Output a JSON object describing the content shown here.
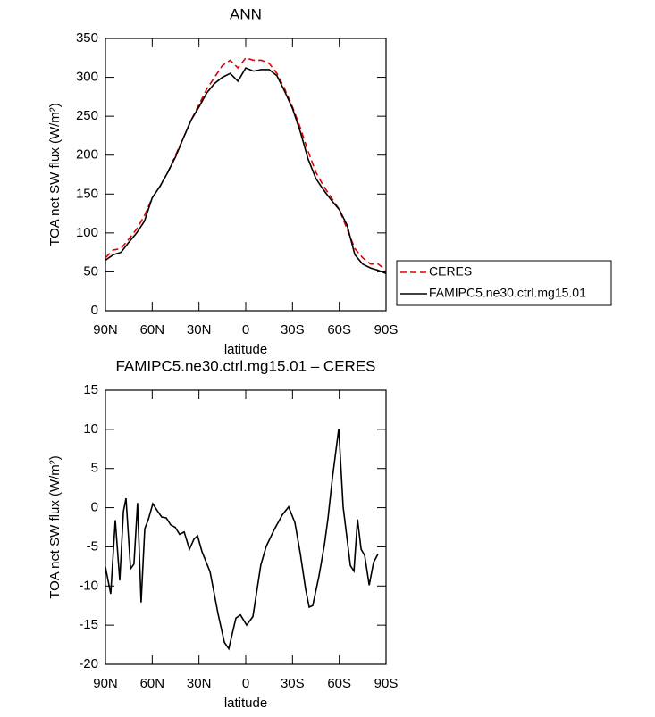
{
  "chart_data": [
    {
      "type": "line",
      "title": "ANN",
      "xlabel": "latitude",
      "ylabel": "TOA net SW flux (W/m²)",
      "x": [
        90,
        85,
        80,
        75,
        70,
        65,
        60,
        55,
        50,
        45,
        40,
        35,
        30,
        25,
        20,
        15,
        10,
        5,
        0,
        -5,
        -10,
        -15,
        -20,
        -25,
        -30,
        -35,
        -40,
        -45,
        -50,
        -55,
        -60,
        -65,
        -70,
        -75,
        -80,
        -85,
        -90
      ],
      "series": [
        {
          "name": "CERES",
          "color": "#e00000",
          "style": "dashed",
          "values": [
            68,
            78,
            80,
            92,
            105,
            122,
            145,
            160,
            178,
            200,
            222,
            245,
            265,
            285,
            300,
            315,
            322,
            312,
            325,
            322,
            322,
            318,
            305,
            285,
            262,
            235,
            205,
            178,
            160,
            145,
            130,
            105,
            80,
            68,
            60,
            60,
            52
          ]
        },
        {
          "name": "FAMIPC5.ne30.ctrl.mg15.01",
          "color": "#000000",
          "style": "solid",
          "values": [
            65,
            72,
            75,
            88,
            100,
            115,
            145,
            160,
            178,
            198,
            222,
            245,
            262,
            280,
            292,
            300,
            305,
            295,
            312,
            308,
            310,
            310,
            302,
            282,
            260,
            230,
            195,
            170,
            155,
            142,
            130,
            110,
            72,
            60,
            55,
            52,
            48
          ]
        }
      ],
      "xlim": [
        90,
        -90
      ],
      "xticks": [
        {
          "value": 90,
          "label": "90N"
        },
        {
          "value": 60,
          "label": "60N"
        },
        {
          "value": 30,
          "label": "30N"
        },
        0,
        {
          "value": -30,
          "label": "30S"
        },
        {
          "value": -60,
          "label": "60S"
        },
        {
          "value": -90,
          "label": "90S"
        }
      ],
      "ylim": [
        0,
        350
      ],
      "yticks": [
        0,
        50,
        100,
        150,
        200,
        250,
        300,
        350
      ],
      "legend": "outside-right"
    },
    {
      "type": "line",
      "title": "FAMIPC5.ne30.ctrl.mg15.01 – CERES",
      "xlabel": "latitude",
      "ylabel": "TOA net SW flux (W/m²)",
      "x": [
        90,
        86.6,
        83.7,
        80.8,
        78.5,
        76.8,
        73.9,
        71.7,
        69.4,
        67.1,
        64.8,
        62.5,
        59.6,
        56.7,
        53.9,
        51.0,
        48.1,
        45.3,
        42.4,
        39.5,
        36.1,
        33.2,
        30.9,
        28.1,
        22.9,
        17.7,
        13.7,
        10.9,
        6.3,
        3.4,
        -0.6,
        -4.6,
        -9.7,
        -13.2,
        -18.3,
        -23.5,
        -27.5,
        -31.5,
        -35.0,
        -38.4,
        -40.7,
        -43.0,
        -47.0,
        -50.5,
        -52.8,
        -55.6,
        -59.7,
        -62.5,
        -67.1,
        -69.4,
        -71.7,
        -74.0,
        -76.3,
        -79.2,
        -82.0,
        -84.9
      ],
      "series": [
        {
          "color": "#000000",
          "style": "solid",
          "values": [
            -7.6,
            -11,
            -1.6,
            -9.3,
            -0.5,
            1.2,
            -7.8,
            -7.2,
            0.6,
            -12.1,
            -2.7,
            -1.5,
            0.5,
            -0.4,
            -1.2,
            -1.3,
            -2.2,
            -2.5,
            -3.4,
            -3.1,
            -5.3,
            -4.0,
            -3.6,
            -5.6,
            -8.2,
            -13.6,
            -17.2,
            -18.0,
            -14.1,
            -13.7,
            -15.0,
            -13.9,
            -7.3,
            -4.9,
            -2.8,
            -0.9,
            0.1,
            -1.9,
            -5.9,
            -10.4,
            -12.7,
            -12.5,
            -8.7,
            -4.7,
            -1.3,
            3.8,
            10.1,
            0.1,
            -7.4,
            -8.1,
            -1.5,
            -5.3,
            -6.1,
            -9.9,
            -7.0,
            -5.9
          ]
        }
      ],
      "xlim": [
        90,
        -90
      ],
      "xticks": [
        {
          "value": 90,
          "label": "90N"
        },
        {
          "value": 60,
          "label": "60N"
        },
        {
          "value": 30,
          "label": "30N"
        },
        0,
        {
          "value": -30,
          "label": "30S"
        },
        {
          "value": -60,
          "label": "60S"
        },
        {
          "value": -90,
          "label": "90S"
        }
      ],
      "ylim": [
        -20,
        15
      ],
      "yticks": [
        -20,
        -15,
        -10,
        -5,
        0,
        5,
        10,
        15
      ]
    }
  ]
}
